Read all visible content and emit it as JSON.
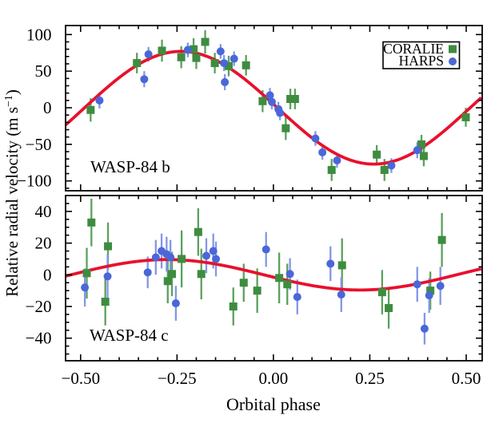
{
  "figure": {
    "background": "#ffffff",
    "axis_color": "#000000",
    "x_axis": {
      "title": "Orbital phase",
      "tick_labels": [
        "−0.50",
        "−0.25",
        "0.00",
        "0.25",
        "0.50"
      ],
      "tick_values": [
        -0.5,
        -0.25,
        0,
        0.25,
        0.5
      ],
      "minor_step": 0.05,
      "range": [
        -0.539,
        0.5415
      ]
    },
    "y_axis_title": {
      "main": "Relative radial velocity (m s",
      "superscript": "−1",
      "close": ")"
    }
  },
  "legend": {
    "entries": [
      {
        "label": "CORALIE",
        "marker": "square",
        "color": "#3e8c40"
      },
      {
        "label": "HARPS",
        "marker": "circle",
        "color": "#4a67d8"
      }
    ]
  },
  "chart_data": [
    {
      "type": "scatter",
      "panel_label": "WASP-84 b",
      "xlabel": "Orbital phase",
      "ylabel": "Relative radial velocity (m s^-1)",
      "xlim": [
        -0.539,
        0.5415
      ],
      "ylim": [
        -113,
        112
      ],
      "y_major_ticks": [
        100,
        50,
        0,
        -50,
        -100
      ],
      "y_tick_labels": [
        "100",
        "50",
        "0",
        "−50",
        "−100"
      ],
      "y_major_step": 50,
      "y_minor_step": 10,
      "model_curve": {
        "shape": "sine",
        "amplitude_ms": 77,
        "sign": -1,
        "phase_offset": 0.0103,
        "color": "#e8112d",
        "width": 3.8
      },
      "columns": [
        "orbital_phase",
        "rv_ms",
        "error_ms"
      ],
      "series": [
        {
          "name": "CORALIE",
          "marker": "square",
          "color": "#3e8c40",
          "error_color": "#5aa15c",
          "points": [
            [
              -0.474,
              -3,
              16
            ],
            [
              -0.354,
              61,
              14
            ],
            [
              -0.289,
              78,
              15
            ],
            [
              -0.239,
              69,
              15
            ],
            [
              -0.207,
              80,
              15
            ],
            [
              -0.2,
              68,
              15
            ],
            [
              -0.177,
              90,
              16
            ],
            [
              -0.152,
              61,
              14
            ],
            [
              -0.116,
              57,
              14
            ],
            [
              -0.071,
              58,
              14
            ],
            [
              -0.028,
              9,
              15
            ],
            [
              0.032,
              -28,
              16
            ],
            [
              0.044,
              12,
              14
            ],
            [
              0.056,
              12,
              14
            ],
            [
              0.151,
              -85,
              15
            ],
            [
              0.268,
              -64,
              13
            ],
            [
              0.288,
              -85,
              15
            ],
            [
              0.384,
              -50,
              13
            ],
            [
              0.39,
              -66,
              14
            ],
            [
              0.499,
              -13,
              13
            ]
          ]
        },
        {
          "name": "HARPS",
          "marker": "circle",
          "color": "#4a67d8",
          "error_color": "#8397e6",
          "points": [
            [
              -0.451,
              10,
              11
            ],
            [
              -0.335,
              39,
              11
            ],
            [
              -0.324,
              73,
              10
            ],
            [
              -0.222,
              79,
              10
            ],
            [
              -0.137,
              77,
              10
            ],
            [
              -0.128,
              61,
              11
            ],
            [
              -0.126,
              35,
              11
            ],
            [
              -0.102,
              67,
              10
            ],
            [
              -0.009,
              17,
              10
            ],
            [
              -0.004,
              8,
              10
            ],
            [
              0.013,
              -2,
              10
            ],
            [
              0.017,
              -7,
              10
            ],
            [
              0.109,
              -42,
              10
            ],
            [
              0.127,
              -61,
              10
            ],
            [
              0.165,
              -72,
              10
            ],
            [
              0.306,
              -79,
              10
            ],
            [
              0.373,
              -58,
              11
            ]
          ]
        }
      ]
    },
    {
      "type": "scatter",
      "panel_label": "WASP-84 c",
      "xlabel": "Orbital phase",
      "ylabel": "Relative radial velocity (m s^-1)",
      "xlim": [
        -0.539,
        0.5415
      ],
      "ylim": [
        -54,
        50
      ],
      "y_major_ticks": [
        40,
        20,
        0,
        -20,
        -40
      ],
      "y_tick_labels": [
        "40",
        "20",
        "0",
        "−20",
        "−40"
      ],
      "y_major_step": 20,
      "y_minor_step": 5,
      "model_curve": {
        "shape": "sine",
        "amplitude_ms": 9.6,
        "sign": -1,
        "phase_offset": -0.025,
        "color": "#e8112d",
        "width": 3.8
      },
      "columns": [
        "orbital_phase",
        "rv_ms",
        "error_ms"
      ],
      "series": [
        {
          "name": "CORALIE",
          "marker": "square",
          "color": "#3e8c40",
          "error_color": "#5aa15c",
          "points": [
            [
              -0.484,
              1,
              16
            ],
            [
              -0.472,
              33,
              15
            ],
            [
              -0.436,
              -17,
              15
            ],
            [
              -0.429,
              18,
              15
            ],
            [
              -0.274,
              -4,
              14
            ],
            [
              -0.263,
              0.5,
              14
            ],
            [
              -0.238,
              10,
              18
            ],
            [
              -0.195,
              27,
              15
            ],
            [
              -0.187,
              0.5,
              16
            ],
            [
              -0.104,
              -20,
              12
            ],
            [
              -0.077,
              -5,
              12
            ],
            [
              -0.042,
              -10,
              14
            ],
            [
              0.015,
              -2,
              16
            ],
            [
              0.036,
              -6,
              13
            ],
            [
              0.178,
              6,
              17
            ],
            [
              0.282,
              -11,
              14
            ],
            [
              0.299,
              -21,
              13
            ],
            [
              0.407,
              -10,
              12
            ],
            [
              0.437,
              22,
              17
            ]
          ]
        },
        {
          "name": "HARPS",
          "marker": "circle",
          "color": "#4a67d8",
          "error_color": "#8397e6",
          "points": [
            [
              -0.489,
              -8,
              12
            ],
            [
              -0.43,
              -1,
              14
            ],
            [
              -0.326,
              1.5,
              10
            ],
            [
              -0.305,
              11,
              11
            ],
            [
              -0.29,
              15,
              11
            ],
            [
              -0.277,
              13,
              11
            ],
            [
              -0.267,
              11,
              11
            ],
            [
              -0.253,
              -18,
              11
            ],
            [
              -0.174,
              12,
              11
            ],
            [
              -0.156,
              15,
              11
            ],
            [
              -0.149,
              10,
              11
            ],
            [
              -0.019,
              16,
              11
            ],
            [
              0.043,
              0.5,
              10
            ],
            [
              0.062,
              -14,
              11
            ],
            [
              0.148,
              7,
              11
            ],
            [
              0.176,
              -12.5,
              11
            ],
            [
              0.373,
              -6,
              11
            ],
            [
              0.392,
              -34,
              10
            ],
            [
              0.404,
              -13,
              11
            ],
            [
              0.433,
              -7,
              12
            ]
          ]
        }
      ]
    }
  ]
}
